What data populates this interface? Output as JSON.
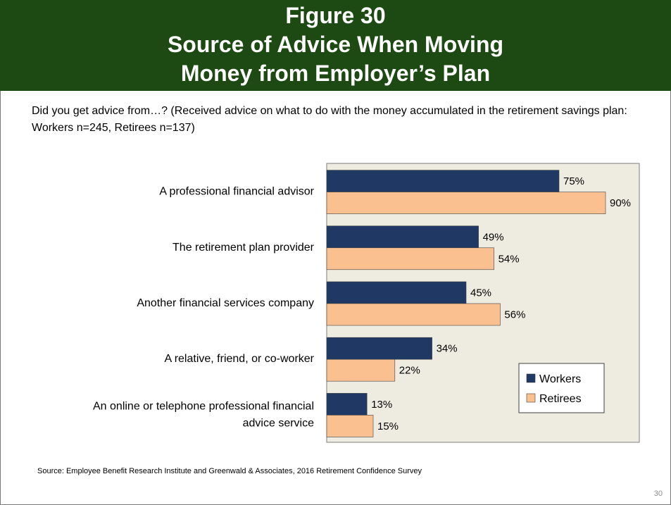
{
  "header": {
    "line1": "Figure 30",
    "line2": "Source of Advice When Moving",
    "line3": "Money from Employer’s Plan"
  },
  "subtitle": "Did you get advice from…? (Received advice on what to do with the money accumulated in the retirement savings plan: Workers n=245, Retirees n=137)",
  "source": "Source:  Employee Benefit Research Institute and Greenwald & Associates, 2016 Retirement Confidence Survey",
  "page_number": "30",
  "colors": {
    "workers": "#1f3864",
    "retirees": "#fac090",
    "plot_bg": "#eeece1",
    "header_bg": "#1d4a12"
  },
  "chart_data": {
    "type": "bar",
    "orientation": "horizontal",
    "categories": [
      [
        "A professional financial advisor"
      ],
      [
        "The retirement plan provider"
      ],
      [
        "Another financial services company"
      ],
      [
        "A relative, friend, or co-worker"
      ],
      [
        "An online or telephone professional financial",
        "advice service"
      ]
    ],
    "series": [
      {
        "name": "Workers",
        "values": [
          75,
          49,
          45,
          34,
          13
        ],
        "labels": [
          "75%",
          "49%",
          "45%",
          "34%",
          "13%"
        ]
      },
      {
        "name": "Retirees",
        "values": [
          90,
          54,
          56,
          22,
          15
        ],
        "labels": [
          "90%",
          "54%",
          "56%",
          "22%",
          "15%"
        ]
      }
    ],
    "xlim": [
      0,
      100
    ],
    "grid": false,
    "legend": "bottom-right"
  }
}
